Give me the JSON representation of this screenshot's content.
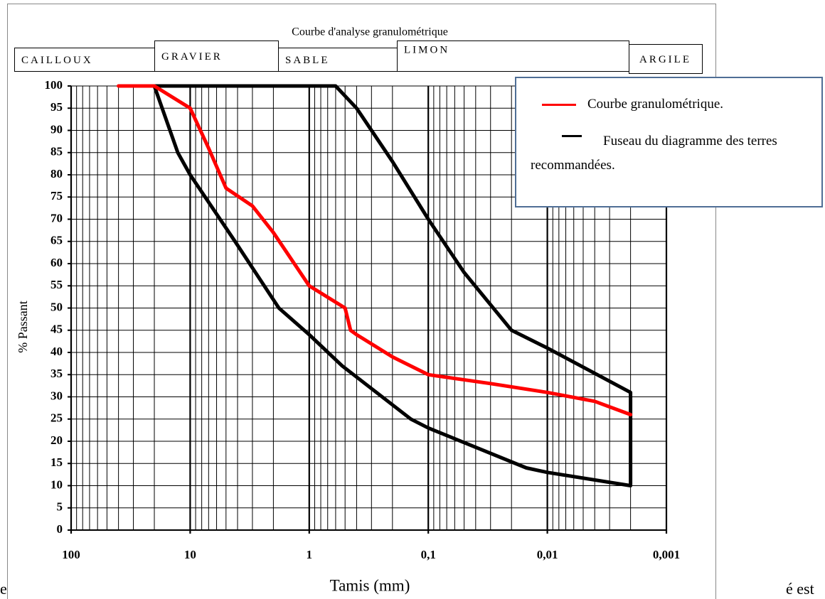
{
  "chart_data": {
    "type": "line",
    "title": "Courbe d'analyse granulométrique",
    "zones": [
      "CAILLOUX",
      "GRAVIER",
      "SABLE",
      "LIMON",
      "ARGILE"
    ],
    "x_label": "Tamis (mm)",
    "y_label": "% Passant",
    "x_scale": "log",
    "xlim": [
      100,
      0.001
    ],
    "xticks": [
      100,
      10,
      1,
      {
        "value": 0.1,
        "label": "0,1"
      },
      {
        "value": 0.01,
        "label": "0,01"
      },
      {
        "value": 0.001,
        "label": "0,001"
      }
    ],
    "ylim": [
      0,
      100
    ],
    "yticks": [
      0,
      5,
      10,
      15,
      20,
      25,
      30,
      35,
      40,
      45,
      50,
      55,
      60,
      65,
      70,
      75,
      80,
      85,
      90,
      95,
      100
    ],
    "grid": true,
    "legend": "top-right",
    "series": [
      {
        "name": "Courbe granulométrique.",
        "color": "#ff0000",
        "x": [
          40,
          20,
          10,
          7,
          5,
          3,
          2,
          1,
          0.5,
          0.45,
          0.4,
          0.2,
          0.1,
          0.03,
          0.01,
          0.004,
          0.002
        ],
        "values": [
          100,
          100,
          95,
          86,
          77,
          73,
          67,
          55,
          50,
          45,
          44,
          39,
          35,
          33,
          31,
          29,
          26
        ]
      },
      {
        "name": "Fuseau du diagramme des terres recommandées.",
        "color": "#000000",
        "x": [
          20,
          12.7,
          10,
          4.2,
          1.8,
          1,
          0.53,
          0.14,
          0.1,
          0.015,
          0.01,
          0.002,
          0.002,
          0.01,
          0.02,
          0.05,
          0.1,
          0.2,
          0.4,
          0.6,
          20
        ],
        "values": [
          100,
          85,
          80,
          65,
          50,
          44,
          37,
          25,
          23,
          14,
          13,
          10,
          31,
          41,
          45,
          58,
          70,
          83,
          95,
          100,
          100
        ]
      }
    ]
  },
  "page_fragments": [
    "e",
    "é est"
  ]
}
